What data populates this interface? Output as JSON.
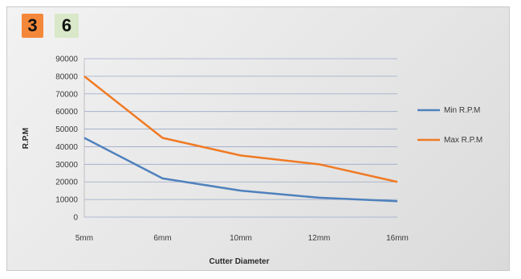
{
  "badges": [
    {
      "text": "3",
      "color": "#f4883a"
    },
    {
      "text": "6",
      "color": "#d9e8c8"
    }
  ],
  "colors": {
    "min": "#4f81bd",
    "max": "#f07a23",
    "grid": "#9aa9c7"
  },
  "chart_data": {
    "type": "line",
    "categories": [
      "5mm",
      "6mm",
      "10mm",
      "12mm",
      "16mm"
    ],
    "series": [
      {
        "name": "Min R.P.M",
        "values": [
          45000,
          22000,
          15000,
          11000,
          9000
        ]
      },
      {
        "name": "Max R.P.M",
        "values": [
          80000,
          45000,
          35000,
          30000,
          20000
        ]
      }
    ],
    "title": "",
    "xlabel": "Cutter Diameter",
    "ylabel": "R.P.M",
    "ylim": [
      0,
      90000
    ],
    "yticks": [
      "0",
      "10000",
      "20000",
      "30000",
      "40000",
      "50000",
      "60000",
      "70000",
      "80000",
      "90000"
    ],
    "grid": true,
    "legend": "right"
  }
}
